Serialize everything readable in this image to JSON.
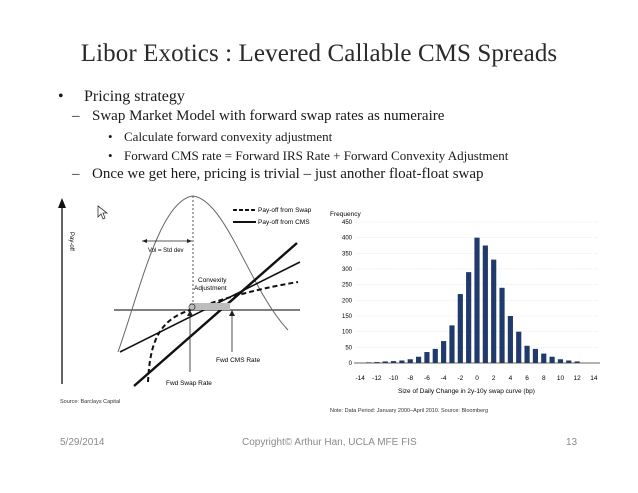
{
  "slide": {
    "title": "Libor Exotics : Levered Callable CMS Spreads",
    "bullets": {
      "l1": "Pricing strategy",
      "l2a": "Swap Market Model with forward swap rates as numeraire",
      "l3a": "Calculate forward convexity adjustment",
      "l3b": "Forward CMS rate = Forward IRS Rate + Forward Convexity Adjustment",
      "l2b": "Once we get here, pricing is trivial – just another float-float swap"
    },
    "bullet_glyph": "•",
    "dash_glyph": "–"
  },
  "left_figure": {
    "y_axis_label": "Pay-off",
    "legend_swap": "Pay-off from Swap",
    "legend_cms": "Pay-off from CMS",
    "vol_label": "Vol = Std dev",
    "convexity_label_1": "Convexity",
    "convexity_label_2": "Adjustment",
    "fwd_cms_label": "Fwd CMS Rate",
    "fwd_swap_label": "Fwd Swap Rate",
    "source": "Source: Barclays Capital",
    "cursor_icon": "cursor-arrow-icon"
  },
  "right_figure": {
    "note": "Note: Data Period: January 2000–April 2010. Source: Bloomberg",
    "bar_color": "#1f3a6b"
  },
  "chart_data": {
    "type": "bar",
    "title": "",
    "ylabel": "Frequency",
    "xlabel": "Size of Daily Change in 2y-10y swap curve (bp)",
    "ylim": [
      0,
      450
    ],
    "yticks": [
      0,
      50,
      100,
      150,
      200,
      250,
      300,
      350,
      400,
      450
    ],
    "xticks": [
      -14,
      -12,
      -10,
      -8,
      -6,
      -4,
      -2,
      0,
      2,
      4,
      6,
      8,
      10,
      12,
      14
    ],
    "x": [
      -13,
      -12,
      -11,
      -10,
      -9,
      -8,
      -7,
      -6,
      -5,
      -4,
      -3,
      -2,
      -1,
      0,
      1,
      2,
      3,
      4,
      5,
      6,
      7,
      8,
      9,
      10,
      11,
      12
    ],
    "values": [
      2,
      3,
      5,
      6,
      8,
      12,
      20,
      35,
      45,
      70,
      120,
      220,
      290,
      400,
      375,
      330,
      240,
      150,
      100,
      55,
      45,
      30,
      20,
      12,
      8,
      5
    ],
    "grid": true
  },
  "footer": {
    "date": "5/29/2014",
    "copyright": "Copyright© Arthur Han,  UCLA MFE FIS",
    "page": "13"
  }
}
